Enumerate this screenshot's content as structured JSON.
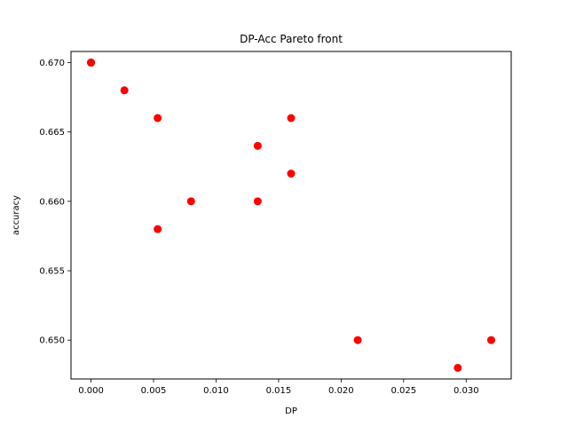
{
  "chart_data": {
    "type": "scatter",
    "title": "DP-Acc Pareto front",
    "xlabel": "DP",
    "ylabel": "accuracy",
    "xlim": [
      -0.0016,
      0.0336
    ],
    "ylim": [
      0.6472,
      0.6708
    ],
    "xticks": [
      0.0,
      0.005,
      0.01,
      0.015,
      0.02,
      0.025,
      0.03
    ],
    "xtick_labels": [
      "0.000",
      "0.005",
      "0.010",
      "0.015",
      "0.020",
      "0.025",
      "0.030"
    ],
    "yticks": [
      0.65,
      0.655,
      0.66,
      0.665,
      0.67
    ],
    "ytick_labels": [
      "0.650",
      "0.655",
      "0.660",
      "0.665",
      "0.670"
    ],
    "grid": false,
    "marker_color": "#ff0000",
    "points": [
      {
        "x": 0.0,
        "y": 0.67
      },
      {
        "x": 0.0,
        "y": 0.67
      },
      {
        "x": 0.0,
        "y": 0.67
      },
      {
        "x": 0.00267,
        "y": 0.668
      },
      {
        "x": 0.00533,
        "y": 0.666
      },
      {
        "x": 0.00533,
        "y": 0.658
      },
      {
        "x": 0.008,
        "y": 0.66
      },
      {
        "x": 0.01333,
        "y": 0.664
      },
      {
        "x": 0.01333,
        "y": 0.66
      },
      {
        "x": 0.016,
        "y": 0.666
      },
      {
        "x": 0.016,
        "y": 0.662
      },
      {
        "x": 0.02133,
        "y": 0.65
      },
      {
        "x": 0.02933,
        "y": 0.648
      },
      {
        "x": 0.032,
        "y": 0.65
      }
    ]
  }
}
